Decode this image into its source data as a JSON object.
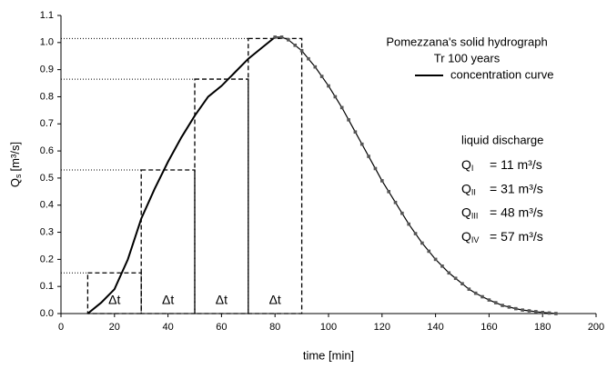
{
  "chart_data": {
    "type": "line",
    "title": "Pomezzana's solid hydrograph",
    "subtitle": "Tr 100 years",
    "xlabel": "time [min]",
    "ylabel": {
      "symbol": "Q",
      "subscript": "s",
      "text": "[m³/s]"
    },
    "xlim": [
      0,
      200
    ],
    "xticks": [
      0,
      20,
      40,
      60,
      80,
      100,
      120,
      140,
      160,
      180,
      200
    ],
    "ylim": [
      0,
      1.1
    ],
    "yticks": [
      {
        "value": 0,
        "label": "0.0"
      },
      0.1,
      0.2,
      0.3,
      0.4,
      0.5,
      0.6,
      0.7,
      0.8,
      0.9,
      {
        "value": 1,
        "label": "1.0"
      },
      1.1
    ],
    "series": [
      {
        "name": "concentration curve",
        "color": "#000000",
        "x": [
          10,
          15,
          20,
          25,
          30,
          35,
          40,
          45,
          50,
          55,
          60,
          65,
          70,
          75,
          80
        ],
        "values": [
          0,
          0.04,
          0.09,
          0.2,
          0.35,
          0.46,
          0.56,
          0.65,
          0.73,
          0.8,
          0.84,
          0.89,
          0.94,
          0.98,
          1.02
        ]
      },
      {
        "color": "#000000",
        "marker": "square",
        "x": [
          80,
          82.5,
          85,
          87.5,
          90,
          92.5,
          95,
          97.5,
          100,
          102.5,
          105,
          107.5,
          110,
          112.5,
          115,
          117.5,
          120,
          122.5,
          125,
          127.5,
          130,
          132.5,
          135,
          137.5,
          140,
          142.5,
          145,
          147.5,
          150,
          152.5,
          155,
          157.5,
          160,
          162.5,
          165,
          167.5,
          170,
          172.5,
          175,
          177.5,
          180,
          182.5,
          185
        ],
        "values": [
          1.02,
          1.02,
          1.01,
          0.99,
          0.97,
          0.94,
          0.91,
          0.875,
          0.84,
          0.8,
          0.76,
          0.715,
          0.67,
          0.625,
          0.58,
          0.535,
          0.49,
          0.45,
          0.41,
          0.37,
          0.33,
          0.295,
          0.26,
          0.23,
          0.2,
          0.175,
          0.15,
          0.13,
          0.11,
          0.09,
          0.075,
          0.062,
          0.05,
          0.04,
          0.03,
          0.024,
          0.018,
          0.013,
          0.01,
          0.007,
          0.004,
          0.002,
          0
        ]
      }
    ],
    "blocks": [
      {
        "x0": 10,
        "x1": 30,
        "value": 0.15,
        "label": "Δt"
      },
      {
        "x0": 30,
        "x1": 50,
        "value": 0.53,
        "label": "Δt"
      },
      {
        "x0": 50,
        "x1": 70,
        "value": 0.865,
        "label": "Δt"
      },
      {
        "x0": 70,
        "x1": 90,
        "value": 1.015,
        "label": "Δt"
      }
    ],
    "discharges": {
      "title": "liquid discharge",
      "items": [
        {
          "symbol": "Q",
          "subscript": "I",
          "text": "= 11 m³/s"
        },
        {
          "symbol": "Q",
          "subscript": "II",
          "text": "= 31 m³/s"
        },
        {
          "symbol": "Q",
          "subscript": "III",
          "text": "= 48 m³/s"
        },
        {
          "symbol": "Q",
          "subscript": "IV",
          "text": "= 57 m³/s"
        }
      ]
    }
  }
}
